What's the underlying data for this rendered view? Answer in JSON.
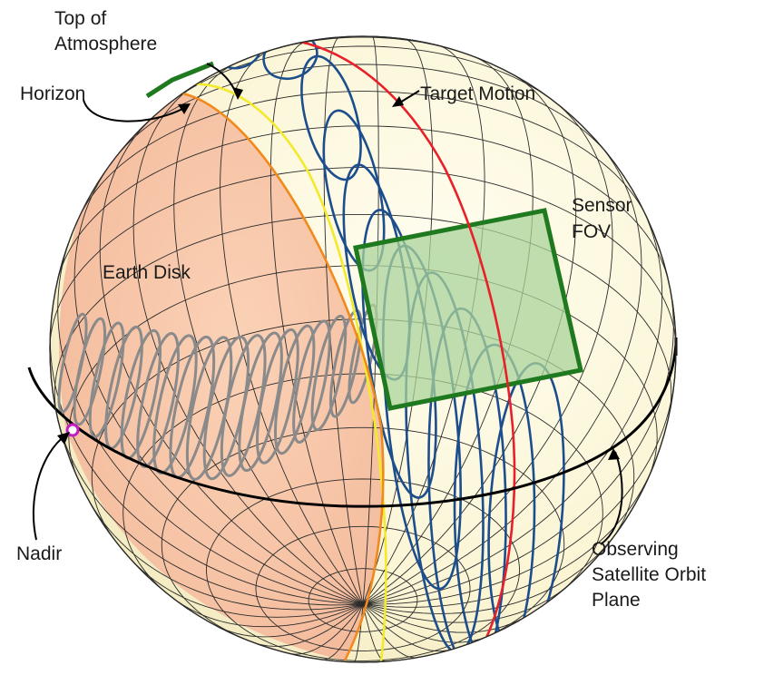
{
  "labels": {
    "top_of_atmosphere": [
      "Top of",
      "Atmosphere"
    ],
    "horizon": "Horizon",
    "target_motion": "Target Motion",
    "sensor_fov": [
      "Sensor",
      "FOV"
    ],
    "earth_disk": "Earth Disk",
    "nadir": "Nadir",
    "orbit_plane": [
      "Observing",
      "Satellite Orbit",
      "Plane"
    ]
  },
  "colors": {
    "sphere_fill": "#fdf8dc",
    "earth_disk_fill": "#f9c7a8",
    "grid": "#2b2b2b",
    "orbit_plane": "#000000",
    "target_motion": "#e8202a",
    "horizon_curve": "#f08a1c",
    "atmosphere_curve": "#f2ea2a",
    "sensor_fov": "#1f7a1f",
    "sensor_fov_fill": "#a9d39a",
    "scan_loops": "#1c4d8c",
    "ground_track": "#8a8a8a",
    "nadir_marker": "#c020c0"
  }
}
